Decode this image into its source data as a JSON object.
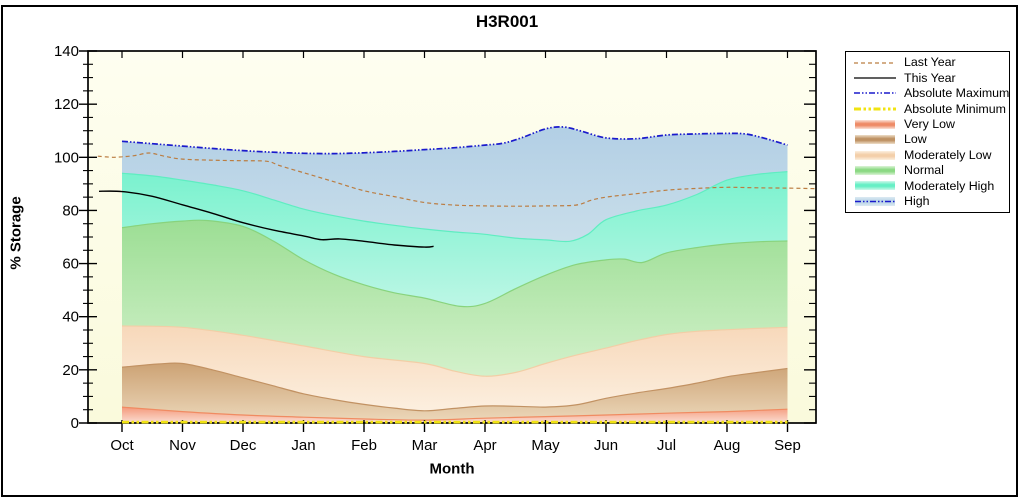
{
  "chart_data": {
    "type": "area",
    "title": "H3R001",
    "xlabel": "Month",
    "ylabel": "% Storage",
    "ylim": [
      0,
      140
    ],
    "y_major_ticks": [
      0,
      20,
      40,
      60,
      80,
      100,
      120,
      140
    ],
    "y_minor_step": 5,
    "grid": false,
    "legend_position": "right",
    "months": [
      "Oct",
      "Nov",
      "Dec",
      "Jan",
      "Feb",
      "Mar",
      "Apr",
      "May",
      "Jun",
      "Jul",
      "Aug",
      "Sep"
    ],
    "plot_bg": {
      "top": "#FEFEF0",
      "bottom": "#FAFADC"
    },
    "axis_color": "#000000",
    "boundaries": {
      "zero": {
        "x": [
          0,
          11
        ],
        "v": [
          0,
          0
        ]
      },
      "very_low_top": {
        "x": [
          0,
          1,
          2,
          3,
          4,
          5,
          6,
          7,
          8,
          9,
          10,
          11
        ],
        "v": [
          6,
          4.3,
          3,
          2.2,
          1.5,
          1.1,
          1.8,
          2.4,
          3,
          3.7,
          4.3,
          5.2
        ]
      },
      "low_top": {
        "x": [
          0,
          0.6,
          1,
          1.5,
          2,
          2.5,
          3,
          3.5,
          4,
          4.5,
          5,
          5.5,
          6,
          6.5,
          7,
          7.5,
          8,
          8.5,
          9,
          9.5,
          10,
          10.5,
          11
        ],
        "v": [
          21,
          22.2,
          22.4,
          20,
          17,
          14,
          11,
          8.8,
          7,
          5.6,
          4.6,
          5.5,
          6.4,
          6.3,
          6,
          6.8,
          9.3,
          11.3,
          13,
          15,
          17.4,
          19,
          20.5
        ]
      },
      "mod_low_top": {
        "x": [
          0,
          1,
          2,
          3,
          4,
          5,
          5.5,
          6,
          6.5,
          7,
          7.5,
          8,
          8.5,
          9,
          9.5,
          10,
          10.5,
          11
        ],
        "v": [
          36.5,
          36,
          33,
          29,
          25,
          22.4,
          19.5,
          17.6,
          19,
          22.4,
          25.5,
          28.2,
          31,
          33.3,
          34.5,
          35.1,
          35.6,
          36
        ]
      },
      "normal_top": {
        "x": [
          0,
          0.5,
          1,
          1.4,
          2,
          2.5,
          3,
          3.5,
          4,
          4.5,
          5,
          5.6,
          6,
          6.5,
          7,
          7.5,
          8,
          8.3,
          8.6,
          9,
          9.5,
          10,
          10.5,
          11
        ],
        "v": [
          73.5,
          75,
          76,
          76.2,
          74,
          68.5,
          61.5,
          56,
          52,
          49,
          47,
          43.9,
          45,
          50.5,
          55.6,
          59.6,
          61.4,
          61.7,
          60.4,
          64,
          66,
          67.4,
          68.2,
          68.5
        ]
      },
      "mod_high_top": {
        "x": [
          0,
          0.5,
          1,
          1.5,
          2,
          2.5,
          3,
          3.5,
          4,
          4.5,
          5,
          5.5,
          6,
          6.5,
          7,
          7.4,
          7.7,
          8,
          8.5,
          9,
          9.5,
          10,
          10.5,
          11
        ],
        "v": [
          94,
          93,
          91.4,
          89.6,
          87.4,
          84,
          80.5,
          78,
          76,
          74.4,
          73,
          71.9,
          71,
          69.6,
          68.9,
          68.4,
          71,
          76.5,
          79.8,
          82,
          86,
          91.4,
          93.6,
          94.6
        ]
      },
      "abs_max": {
        "x": [
          0,
          0.5,
          1,
          1.5,
          2,
          2.5,
          3,
          3.5,
          4,
          4.5,
          5,
          5.5,
          6,
          6.3,
          6.6,
          7,
          7.3,
          7.6,
          8,
          8.5,
          9,
          9.5,
          10,
          10.3,
          10.6,
          11
        ],
        "v": [
          106,
          105.1,
          104.2,
          103.3,
          102.5,
          101.9,
          101.5,
          101.4,
          101.7,
          102.2,
          102.9,
          103.6,
          104.6,
          105.3,
          107.3,
          110.7,
          111.4,
          109.8,
          107.3,
          107,
          108.4,
          108.8,
          109,
          108.8,
          107.3,
          104.6
        ]
      }
    },
    "bands": [
      {
        "name": "Very Low",
        "top": "very_low_top",
        "fill_top": "#F4997B",
        "fill_bottom": "#FBDED2",
        "edge": "#F08B62"
      },
      {
        "name": "Low",
        "top": "low_top",
        "fill_top": "#CCA274",
        "fill_bottom": "#EBD6B8",
        "edge": "#C29263"
      },
      {
        "name": "Moderately Low",
        "top": "mod_low_top",
        "fill_top": "#F7D8BA",
        "fill_bottom": "#FCEFDF",
        "edge": "#F2CEA6"
      },
      {
        "name": "Normal",
        "top": "normal_top",
        "fill_top": "#9CDE94",
        "fill_bottom": "#D3F1CB",
        "edge": "#88D37D"
      },
      {
        "name": "Moderately High",
        "top": "mod_high_top",
        "fill_top": "#79F2CE",
        "fill_bottom": "#BCF6E5",
        "edge": "#5FEDC1"
      },
      {
        "name": "High",
        "top": "abs_max",
        "fill_top": "#B2CFE5",
        "fill_bottom": "#C9DEEA",
        "edge": null
      }
    ],
    "lines": [
      {
        "name": "Last Year",
        "color": "#BB7D42",
        "width": 1.2,
        "dash": "4 3",
        "x": [
          -0.4,
          -0.15,
          0,
          0.2,
          0.45,
          0.7,
          1,
          1.5,
          2,
          2.4,
          2.6,
          3,
          3.5,
          4,
          4.5,
          5,
          5.5,
          6,
          6.5,
          7,
          7.5,
          7.75,
          8,
          8.5,
          9,
          9.5,
          10,
          10.5,
          11,
          11.45
        ],
        "v": [
          100.4,
          100.0,
          100.2,
          100.6,
          101.6,
          100.4,
          99.3,
          98.9,
          98.7,
          98.5,
          96.9,
          94.2,
          90.8,
          87.4,
          85.2,
          83.0,
          82.0,
          81.7,
          81.6,
          81.7,
          82.0,
          83.8,
          85.0,
          86.3,
          87.6,
          88.3,
          88.7,
          88.5,
          88.4,
          88.2
        ]
      },
      {
        "name": "This Year",
        "color": "#000000",
        "width": 1.4,
        "dash": null,
        "x": [
          -0.38,
          0,
          0.5,
          1,
          1.5,
          2,
          2.5,
          3,
          3.3,
          3.6,
          4,
          4.5,
          5,
          5.15
        ],
        "v": [
          87.2,
          87.1,
          85.3,
          82.1,
          78.9,
          75.4,
          72.6,
          70.4,
          69.0,
          69.3,
          68.4,
          67.0,
          66.2,
          66.5
        ]
      },
      {
        "name": "Absolute Maximum",
        "color": "#1A1ACC",
        "width": 1.7,
        "dash": "6 2 1.5 2 1.5 2",
        "boundary": "abs_max"
      },
      {
        "name": "Absolute Minimum",
        "color": "#F0E312",
        "width": 2.8,
        "dash": "7 2.5 2.5 2.5 2.5 2.5",
        "x": [
          0,
          11
        ],
        "v": [
          0.35,
          0.35
        ]
      }
    ],
    "legend": [
      {
        "label": "Last Year",
        "type": "line",
        "color": "#BB7D42",
        "width": 1.3,
        "dash": "4 3"
      },
      {
        "label": "This Year",
        "type": "line",
        "color": "#000000",
        "width": 1.3,
        "dash": null
      },
      {
        "label": "Absolute Maximum",
        "type": "line",
        "color": "#1A1ACC",
        "width": 1.6,
        "dash": "6 2 1.5 2 1.5 2"
      },
      {
        "label": "Absolute Minimum",
        "type": "line",
        "color": "#F0E312",
        "width": 3,
        "dash": "7 2.5 2.5 2.5 2.5 2.5"
      },
      {
        "label": "Very Low",
        "type": "band",
        "center": "#EE8B66",
        "edge_color": "#FBE3D9"
      },
      {
        "label": "Low",
        "type": "band",
        "center": "#BE9163",
        "edge_color": "#EEDFC9"
      },
      {
        "label": "Moderately Low",
        "type": "band",
        "center": "#F3CFA9",
        "edge_color": "#FCF0E0"
      },
      {
        "label": "Normal",
        "type": "band",
        "center": "#8BD983",
        "edge_color": "#DCF4D7"
      },
      {
        "label": "Moderately High",
        "type": "band",
        "center": "#66EFC5",
        "edge_color": "#CFF8EB"
      },
      {
        "label": "High",
        "type": "band-line",
        "center": "#BCD6E8",
        "edge_color": "#DCEAF2",
        "color": "#1A1ACC",
        "width": 1.4,
        "dash": "6 2 1.5 2 1.5 2"
      }
    ]
  }
}
